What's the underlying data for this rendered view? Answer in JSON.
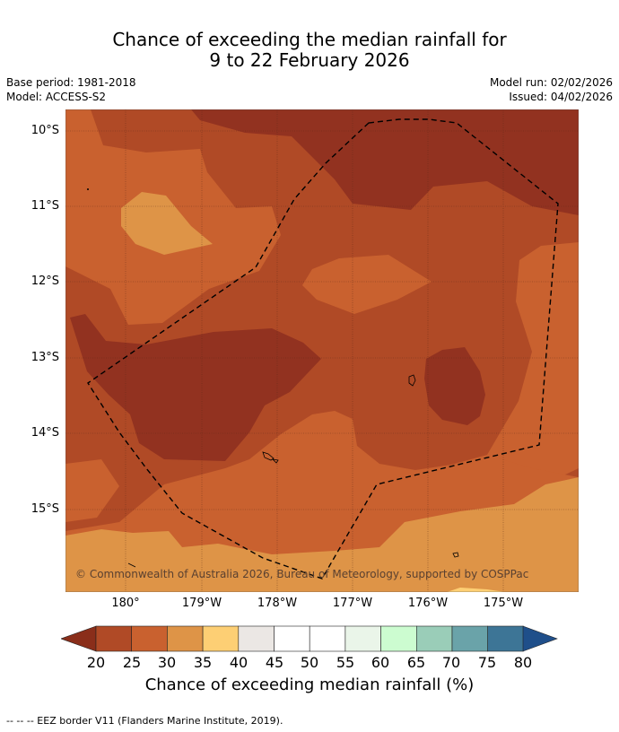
{
  "title": {
    "line1": "Chance of exceeding the median rainfall for",
    "line2": "9 to 22 February 2026"
  },
  "meta": {
    "base_period": "Base period: 1981-2018",
    "model": "Model: ACCESS-S2",
    "model_run": "Model run: 02/02/2026",
    "issued": "Issued: 04/02/2026"
  },
  "map": {
    "latitude_labels": [
      "10°S",
      "11°S",
      "12°S",
      "13°S",
      "14°S",
      "15°S"
    ],
    "longitude_labels": [
      "180°",
      "179°W",
      "178°W",
      "177°W",
      "176°W",
      "175°W"
    ],
    "copyright": "© Commonwealth of Australia 2026, Bureau of Meteorology, supported by COSPPac",
    "colors": {
      "c20_25": "#b04a26",
      "c15_20": "#923220",
      "c25_30": "#c9612f",
      "c30_35": "#de9447",
      "c35_40": "#f5c770"
    }
  },
  "colorbar": {
    "title": "Chance of exceeding median rainfall (%)",
    "ticks": [
      "20",
      "25",
      "30",
      "35",
      "40",
      "45",
      "50",
      "55",
      "60",
      "65",
      "70",
      "75",
      "80"
    ],
    "colors": [
      "#8a2e1a",
      "#b04a26",
      "#c9612f",
      "#de9447",
      "#fdcf74",
      "#ebe7e4",
      "#ffffff",
      "#ffffff",
      "#eaf5e9",
      "#ccfcd0",
      "#9acdb8",
      "#6aa3a9",
      "#3d7596",
      "#1f4f8a"
    ]
  },
  "footnote": "--  --  -- EEZ border V11 (Flanders Marine Institute, 2019)."
}
